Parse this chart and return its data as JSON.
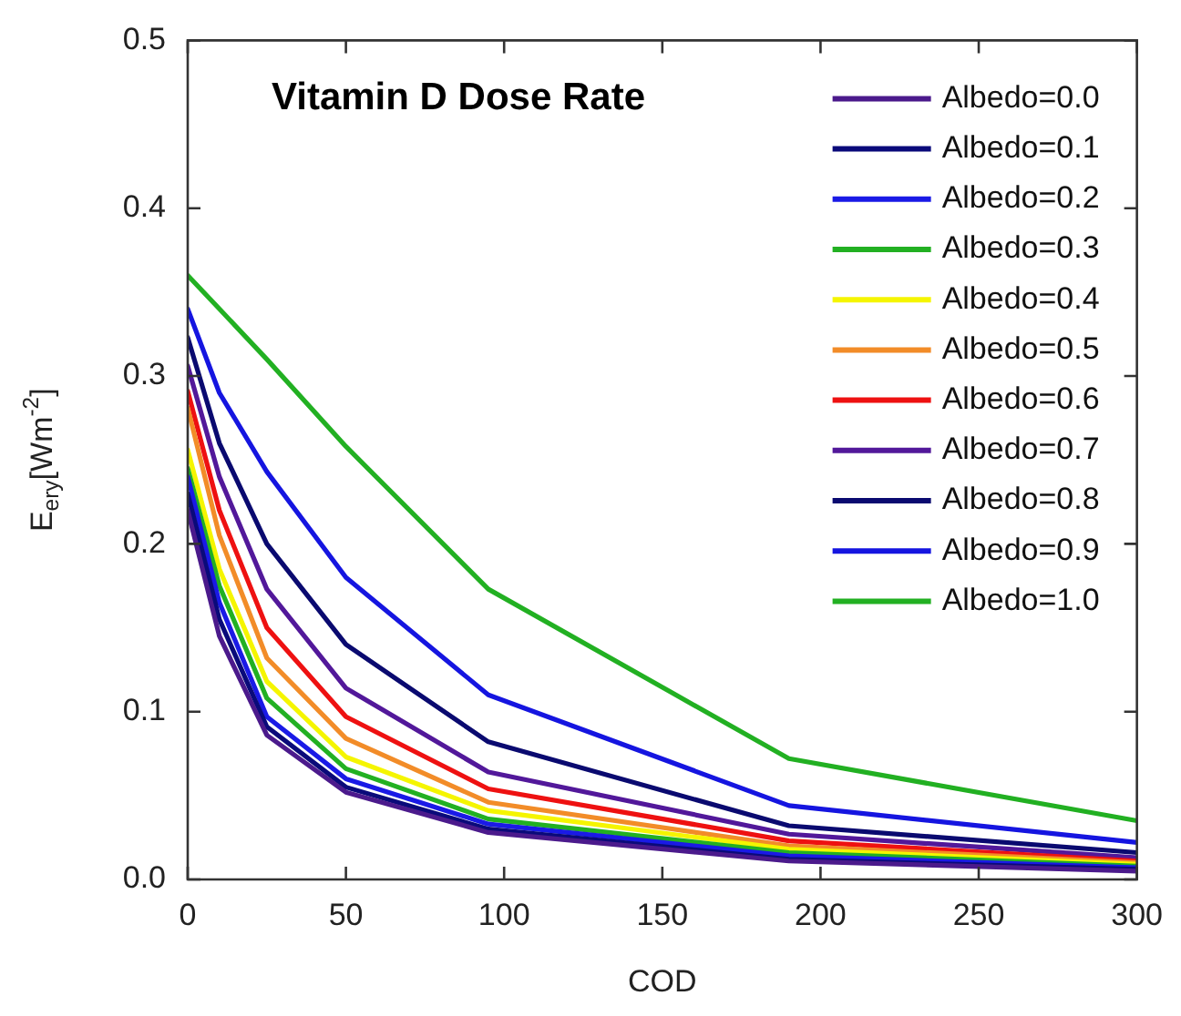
{
  "chart_data": {
    "type": "line",
    "xlabel": "COD",
    "ylabel": "E$_{ery}$[Wm$^{-2}$]",
    "annotations": [
      "Vitamin D Dose Rate"
    ],
    "x": [
      0,
      10,
      25,
      50,
      95,
      190,
      300
    ],
    "xlim": [
      0,
      300
    ],
    "xticks": [
      0,
      50,
      100,
      150,
      200,
      250,
      300
    ],
    "ylim": [
      0,
      0.5
    ],
    "yticks": [
      {
        "value": 0,
        "label": "0.0"
      },
      0.1,
      0.2,
      0.3,
      0.4,
      0.5
    ],
    "legend": "top right",
    "marker": "none",
    "series": [
      {
        "name": "Albedo=0.0",
        "color": "#4b1a8c",
        "values": [
          0.22,
          0.145,
          0.086,
          0.052,
          0.028,
          0.011,
          0.005
        ]
      },
      {
        "name": "Albedo=0.1",
        "color": "#0a0a7a",
        "values": [
          0.23,
          0.155,
          0.091,
          0.055,
          0.03,
          0.012,
          0.006
        ]
      },
      {
        "name": "Albedo=0.2",
        "color": "#1a1ae6",
        "values": [
          0.24,
          0.165,
          0.097,
          0.06,
          0.033,
          0.014,
          0.007
        ]
      },
      {
        "name": "Albedo=0.3",
        "color": "#22b022",
        "values": [
          0.245,
          0.175,
          0.108,
          0.066,
          0.036,
          0.016,
          0.008
        ]
      },
      {
        "name": "Albedo=0.4",
        "color": "#f5f500",
        "values": [
          0.256,
          0.185,
          0.118,
          0.073,
          0.041,
          0.018,
          0.009
        ]
      },
      {
        "name": "Albedo=0.5",
        "color": "#f28c28",
        "values": [
          0.281,
          0.205,
          0.132,
          0.084,
          0.046,
          0.02,
          0.01
        ]
      },
      {
        "name": "Albedo=0.6",
        "color": "#ee1111",
        "values": [
          0.291,
          0.22,
          0.15,
          0.097,
          0.054,
          0.023,
          0.011
        ]
      },
      {
        "name": "Albedo=0.7",
        "color": "#52189a",
        "values": [
          0.306,
          0.24,
          0.173,
          0.114,
          0.064,
          0.027,
          0.013
        ]
      },
      {
        "name": "Albedo=0.8",
        "color": "#0a0a70",
        "values": [
          0.323,
          0.26,
          0.2,
          0.14,
          0.082,
          0.032,
          0.016
        ]
      },
      {
        "name": "Albedo=0.9",
        "color": "#1515e0",
        "values": [
          0.34,
          0.29,
          0.243,
          0.18,
          0.11,
          0.044,
          0.022
        ]
      },
      {
        "name": "Albedo=1.0",
        "color": "#22b022",
        "values": [
          0.36,
          0.34,
          0.31,
          0.258,
          0.173,
          0.072,
          0.035
        ]
      }
    ]
  }
}
